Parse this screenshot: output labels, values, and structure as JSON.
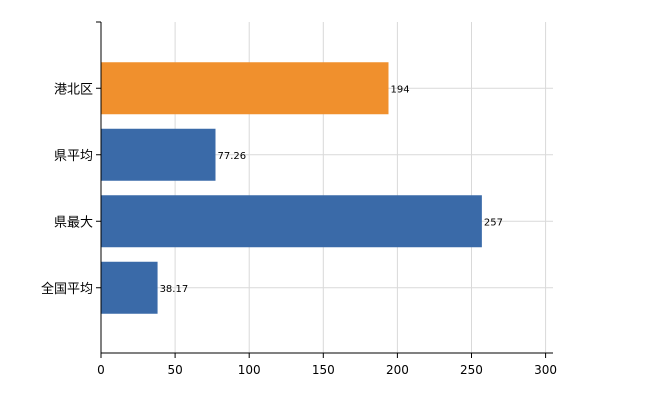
{
  "chart_data": {
    "type": "bar",
    "orientation": "horizontal",
    "categories": [
      "港北区",
      "県平均",
      "県最大",
      "全国平均"
    ],
    "values": [
      194,
      77.26,
      257,
      38.17
    ],
    "value_labels": [
      "194",
      "77.26",
      "257",
      "38.17"
    ],
    "bar_colors": [
      "#f0902d",
      "#3a6aa8",
      "#3a6aa8",
      "#3a6aa8"
    ],
    "xlim": [
      0,
      305
    ],
    "xticks": [
      0,
      50,
      100,
      150,
      200,
      250,
      300
    ],
    "grid": true,
    "title": "",
    "xlabel": "",
    "ylabel": ""
  }
}
